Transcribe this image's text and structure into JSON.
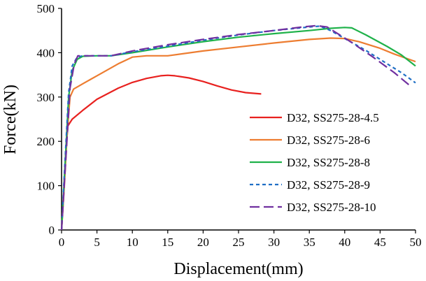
{
  "chart_data": {
    "type": "line",
    "title": "",
    "xlabel": "Displacement(mm)",
    "ylabel": "Force(kN)",
    "xlim": [
      0,
      50
    ],
    "ylim": [
      0,
      500
    ],
    "xticks": [
      0,
      5,
      10,
      15,
      20,
      25,
      30,
      35,
      40,
      45,
      50
    ],
    "yticks": [
      0,
      100,
      200,
      300,
      400,
      500
    ],
    "grid": false,
    "legend_position": "bottom-right",
    "series": [
      {
        "name": "D32, SS275-28-4.5",
        "color": "#e8211f",
        "dash": "solid",
        "points": [
          [
            0,
            0
          ],
          [
            0.3,
            80
          ],
          [
            0.6,
            180
          ],
          [
            0.9,
            235
          ],
          [
            1.5,
            250
          ],
          [
            3,
            270
          ],
          [
            5,
            295
          ],
          [
            8,
            320
          ],
          [
            10,
            333
          ],
          [
            12,
            342
          ],
          [
            14,
            348
          ],
          [
            15,
            349
          ],
          [
            16,
            348
          ],
          [
            18,
            343
          ],
          [
            20,
            335
          ],
          [
            22,
            325
          ],
          [
            24,
            316
          ],
          [
            26,
            310
          ],
          [
            28.2,
            307
          ]
        ]
      },
      {
        "name": "D32, SS275-28-6",
        "color": "#ed7d31",
        "dash": "solid",
        "points": [
          [
            0,
            0
          ],
          [
            0.4,
            100
          ],
          [
            0.8,
            220
          ],
          [
            1.2,
            300
          ],
          [
            1.7,
            318
          ],
          [
            3,
            330
          ],
          [
            5,
            348
          ],
          [
            8,
            375
          ],
          [
            10,
            390
          ],
          [
            12,
            393
          ],
          [
            15,
            393
          ],
          [
            20,
            404
          ],
          [
            25,
            413
          ],
          [
            30,
            422
          ],
          [
            35,
            430
          ],
          [
            38,
            433
          ],
          [
            40,
            432
          ],
          [
            42,
            425
          ],
          [
            45,
            410
          ],
          [
            47,
            397
          ],
          [
            50,
            380
          ]
        ]
      },
      {
        "name": "D32, SS275-28-8",
        "color": "#1fb24a",
        "dash": "solid",
        "points": [
          [
            0,
            0
          ],
          [
            0.5,
            150
          ],
          [
            1,
            300
          ],
          [
            1.5,
            360
          ],
          [
            2.2,
            385
          ],
          [
            3,
            392
          ],
          [
            5,
            393
          ],
          [
            7,
            393
          ],
          [
            10,
            400
          ],
          [
            15,
            413
          ],
          [
            20,
            425
          ],
          [
            25,
            435
          ],
          [
            30,
            443
          ],
          [
            35,
            450
          ],
          [
            38,
            455
          ],
          [
            40,
            457
          ],
          [
            41,
            456
          ],
          [
            43,
            440
          ],
          [
            46,
            414
          ],
          [
            48,
            395
          ],
          [
            50,
            370
          ]
        ]
      },
      {
        "name": "D32, SS275-28-9",
        "color": "#1f6fc5",
        "dash": "5,4",
        "points": [
          [
            0,
            0
          ],
          [
            0.5,
            160
          ],
          [
            1,
            310
          ],
          [
            1.5,
            370
          ],
          [
            2.2,
            390
          ],
          [
            3,
            393
          ],
          [
            5,
            393
          ],
          [
            7,
            393
          ],
          [
            10,
            402
          ],
          [
            15,
            415
          ],
          [
            20,
            428
          ],
          [
            25,
            440
          ],
          [
            30,
            450
          ],
          [
            35,
            458
          ],
          [
            36.5,
            460
          ],
          [
            38,
            450
          ],
          [
            40,
            432
          ],
          [
            43,
            405
          ],
          [
            46,
            375
          ],
          [
            48,
            355
          ],
          [
            50,
            332
          ]
        ]
      },
      {
        "name": "D32, SS275-28-10",
        "color": "#7030a0",
        "dash": "14,6",
        "points": [
          [
            0,
            0
          ],
          [
            0.6,
            160
          ],
          [
            1.2,
            320
          ],
          [
            1.8,
            375
          ],
          [
            2.3,
            393
          ],
          [
            3,
            393
          ],
          [
            5,
            393
          ],
          [
            7,
            393
          ],
          [
            10,
            404
          ],
          [
            15,
            418
          ],
          [
            20,
            430
          ],
          [
            25,
            441
          ],
          [
            30,
            450
          ],
          [
            34,
            458
          ],
          [
            36,
            461
          ],
          [
            37.5,
            458
          ],
          [
            39,
            443
          ],
          [
            41,
            423
          ],
          [
            44,
            390
          ],
          [
            47,
            355
          ],
          [
            49.5,
            322
          ]
        ]
      }
    ]
  }
}
